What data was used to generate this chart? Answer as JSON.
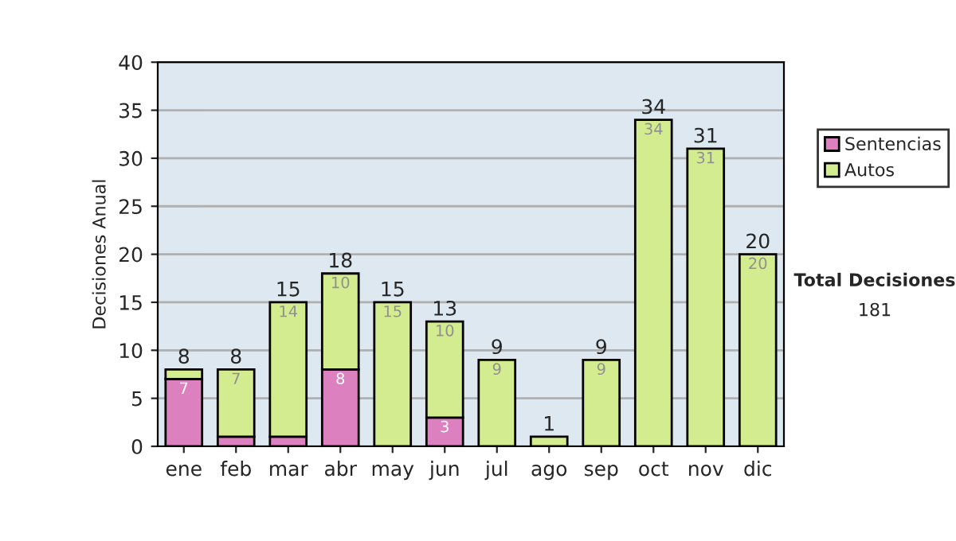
{
  "chart_data": {
    "type": "bar",
    "stacked": true,
    "ylabel": "Decisiones Anual",
    "categories": [
      "ene",
      "feb",
      "mar",
      "abr",
      "may",
      "jun",
      "jul",
      "ago",
      "sep",
      "oct",
      "nov",
      "dic"
    ],
    "series": [
      {
        "name": "Sentencias",
        "color": "#dd80c0",
        "values": [
          7,
          1,
          1,
          8,
          0,
          3,
          0,
          0,
          0,
          0,
          0,
          0
        ],
        "value_labels": [
          "7",
          null,
          null,
          "8",
          null,
          "3",
          null,
          null,
          null,
          null,
          null,
          null
        ]
      },
      {
        "name": "Autos",
        "color": "#d4ec90",
        "values": [
          1,
          7,
          14,
          10,
          15,
          10,
          9,
          1,
          9,
          34,
          31,
          20
        ],
        "value_labels": [
          null,
          "7",
          "14",
          "10",
          "15",
          "10",
          "9",
          null,
          "9",
          "34",
          "31",
          "20"
        ]
      }
    ],
    "totals": [
      "8",
      "8",
      "15",
      "18",
      "15",
      "13",
      "9",
      "1",
      "9",
      "34",
      "31",
      "20"
    ],
    "ylim": [
      0,
      40
    ],
    "yticks": [
      0,
      5,
      10,
      15,
      20,
      25,
      30,
      35,
      40
    ],
    "grid": "y",
    "legend": "right",
    "annotations": [
      "Total Decisiones",
      "181"
    ]
  }
}
